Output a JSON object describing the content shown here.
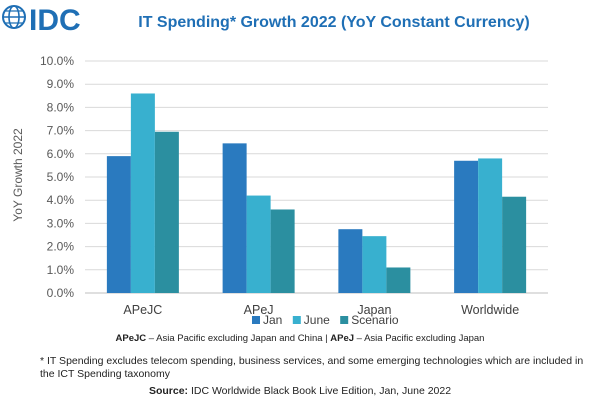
{
  "brand": {
    "logo_text": "IDC",
    "logo_color": "#1f6fb5"
  },
  "chart_data": {
    "type": "bar",
    "title": "IT Spending* Growth 2022 (YoY Constant Currency)",
    "title_color": "#1f6fb5",
    "ylabel": "YoY Growth 2022",
    "xlabel": "",
    "ylim": [
      0,
      10
    ],
    "ytick_labels": [
      "0.0%",
      "1.0%",
      "2.0%",
      "3.0%",
      "4.0%",
      "5.0%",
      "6.0%",
      "7.0%",
      "8.0%",
      "9.0%",
      "10.0%"
    ],
    "grid": true,
    "legend_placement": "bottom",
    "categories": [
      "APeJC",
      "APeJ",
      "Japan",
      "Worldwide"
    ],
    "series": [
      {
        "name": "Jan",
        "color": "#2a7abf",
        "values": [
          5.9,
          6.45,
          2.75,
          5.7
        ]
      },
      {
        "name": "June",
        "color": "#38b0cf",
        "values": [
          8.6,
          4.2,
          2.45,
          5.8
        ]
      },
      {
        "name": "Scenario",
        "color": "#2b8fa0",
        "values": [
          6.95,
          3.6,
          1.1,
          4.15
        ]
      }
    ]
  },
  "notes": {
    "abbr_1_term": "APeJC",
    "abbr_1_def": " – Asia Pacific excluding Japan and China | ",
    "abbr_2_term": "APeJ",
    "abbr_2_def": " – Asia Pacific excluding Japan",
    "footnote": "* IT Spending excludes telecom spending, business services, and some emerging technologies which are included in the ICT Spending taxonomy",
    "source_label": "Source:",
    "source_text": " IDC Worldwide Black Book Live Edition, Jan, June 2022"
  }
}
